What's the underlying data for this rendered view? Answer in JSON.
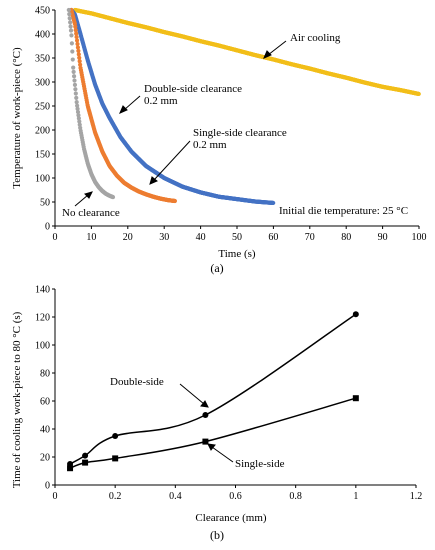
{
  "chart_data": [
    {
      "type": "scatter",
      "panel_label": "(a)",
      "xlabel": "Time (s)",
      "ylabel": "Temperature of work-piece (°C)",
      "xlim": [
        0,
        100
      ],
      "ylim": [
        0,
        450
      ],
      "x_ticks": [
        0,
        10,
        20,
        30,
        40,
        50,
        60,
        70,
        80,
        90,
        100
      ],
      "y_ticks": [
        0,
        50,
        100,
        150,
        200,
        250,
        300,
        350,
        400,
        450
      ],
      "grid": false,
      "series": [
        {
          "color": "#F2BE1A",
          "x": [
            5.5,
            8,
            10,
            15,
            20,
            25,
            30,
            35,
            40,
            45,
            50,
            55,
            60,
            65,
            70,
            75,
            80,
            85,
            90,
            95,
            100
          ],
          "y": [
            450,
            446,
            443,
            433,
            423,
            414,
            404,
            395,
            385,
            376,
            366,
            356,
            347,
            337,
            328,
            318,
            309,
            299,
            290,
            283,
            275
          ]
        },
        {
          "color": "#4472C4",
          "x": [
            4.5,
            5.5,
            7,
            9,
            11,
            13,
            15,
            18,
            21,
            25,
            30,
            35,
            40,
            45,
            50,
            55,
            60
          ],
          "y": [
            450,
            440,
            400,
            345,
            295,
            255,
            225,
            185,
            155,
            125,
            100,
            82,
            70,
            61,
            56,
            51,
            48
          ]
        },
        {
          "color": "#ED7D31",
          "x": [
            4.5,
            5.5,
            7,
            9,
            11,
            13,
            15,
            17,
            19,
            21,
            23,
            25,
            27,
            29,
            31,
            33
          ],
          "y": [
            450,
            420,
            330,
            250,
            195,
            155,
            125,
            105,
            90,
            80,
            72,
            66,
            61,
            57,
            54,
            52
          ]
        },
        {
          "color": "#A5A5A5",
          "x": [
            3.8,
            4.5,
            5,
            6,
            7,
            8,
            9,
            10,
            11,
            12,
            13,
            14,
            15,
            16
          ],
          "y": [
            450,
            400,
            330,
            255,
            200,
            160,
            130,
            108,
            92,
            81,
            73,
            67,
            63,
            60
          ]
        }
      ],
      "annotations": [
        {
          "text": "Air cooling"
        },
        {
          "text": "Double-side clearance"
        },
        {
          "text": "0.2 mm"
        },
        {
          "text": "Single-side clearance"
        },
        {
          "text": "0.2 mm"
        },
        {
          "text": "No clearance"
        },
        {
          "text": "Initial die temperature: 25 °C"
        }
      ]
    },
    {
      "type": "line",
      "panel_label": "(b)",
      "xlabel": "Clearance (mm)",
      "ylabel": "Time of cooling work-piece to 80 °C (s)",
      "xlim": [
        0,
        1.2
      ],
      "ylim": [
        0,
        140
      ],
      "x_ticks": [
        "0",
        "0.2",
        "0.4",
        "0.6",
        "0.8",
        "1",
        "1.2"
      ],
      "y_ticks": [
        0,
        20,
        40,
        60,
        80,
        100,
        120,
        140
      ],
      "grid": false,
      "series": [
        {
          "color": "#000000",
          "marker": "circle",
          "x": [
            0.05,
            0.1,
            0.2,
            0.5,
            1.0
          ],
          "y": [
            15,
            21,
            35,
            50,
            122
          ]
        },
        {
          "color": "#000000",
          "marker": "square",
          "x": [
            0.05,
            0.1,
            0.2,
            0.5,
            1.0
          ],
          "y": [
            12,
            16,
            19,
            31,
            62
          ]
        }
      ],
      "annotations": [
        {
          "text": "Double-side"
        },
        {
          "text": "Single-side"
        }
      ]
    }
  ]
}
